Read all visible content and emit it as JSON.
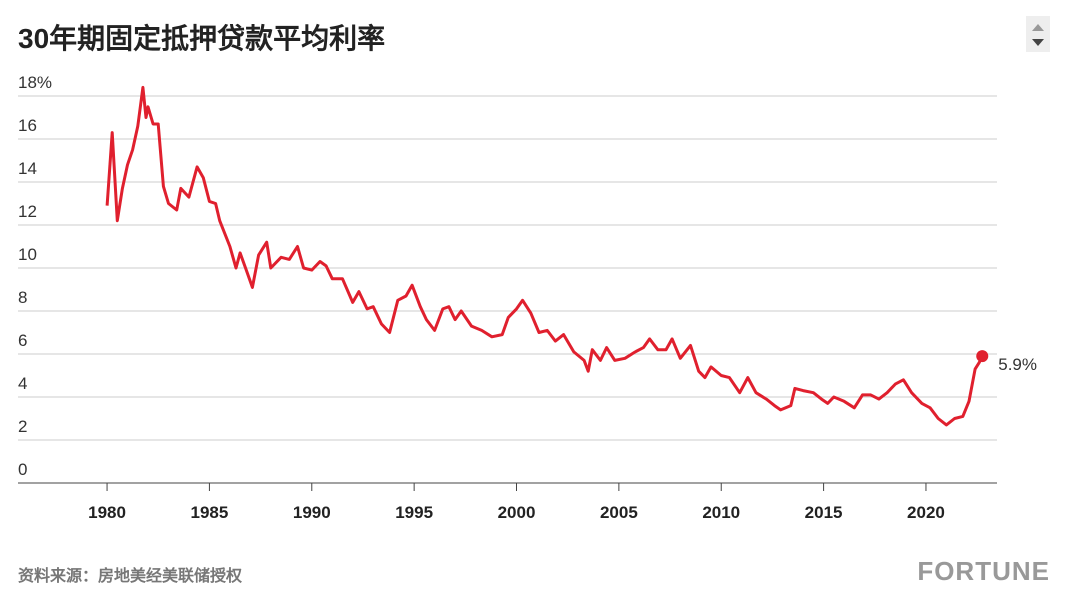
{
  "chart_data": {
    "type": "line",
    "title": "30年期固定抵押贷款平均利率",
    "source": "资料来源：房地美经美联储授权",
    "brand": "FORTUNE",
    "x": [
      1980.0,
      1980.25,
      1980.5,
      1980.75,
      1981.0,
      1981.25,
      1981.5,
      1981.75,
      1981.9,
      1982.0,
      1982.25,
      1982.5,
      1982.75,
      1983.0,
      1983.4,
      1983.6,
      1984.0,
      1984.4,
      1984.7,
      1985.0,
      1985.3,
      1985.5,
      1986.0,
      1986.3,
      1986.5,
      1986.8,
      1987.1,
      1987.4,
      1987.8,
      1988.0,
      1988.5,
      1988.9,
      1989.3,
      1989.6,
      1990.0,
      1990.4,
      1990.7,
      1991.0,
      1991.5,
      1992.0,
      1992.3,
      1992.7,
      1993.0,
      1993.4,
      1993.8,
      1994.2,
      1994.6,
      1994.9,
      1995.3,
      1995.6,
      1996.0,
      1996.4,
      1996.7,
      1997.0,
      1997.3,
      1997.8,
      1998.3,
      1998.8,
      1999.3,
      1999.6,
      2000.0,
      2000.3,
      2000.7,
      2001.1,
      2001.5,
      2001.9,
      2002.3,
      2002.8,
      2003.3,
      2003.5,
      2003.7,
      2004.1,
      2004.4,
      2004.8,
      2005.3,
      2005.8,
      2006.2,
      2006.5,
      2006.9,
      2007.3,
      2007.6,
      2008.0,
      2008.5,
      2008.9,
      2009.2,
      2009.5,
      2010.0,
      2010.4,
      2010.9,
      2011.3,
      2011.7,
      2012.2,
      2012.6,
      2012.9,
      2013.4,
      2013.6,
      2014.0,
      2014.5,
      2014.9,
      2015.2,
      2015.5,
      2016.0,
      2016.5,
      2016.9,
      2017.3,
      2017.7,
      2018.1,
      2018.5,
      2018.9,
      2019.3,
      2019.8,
      2020.2,
      2020.6,
      2021.0,
      2021.4,
      2021.8,
      2022.1,
      2022.4,
      2022.6,
      2022.75
    ],
    "series": [
      {
        "color": "#e0202e",
        "values": [
          12.9,
          16.3,
          12.2,
          13.7,
          14.8,
          15.5,
          16.6,
          18.4,
          17.0,
          17.5,
          16.7,
          16.7,
          13.8,
          13.0,
          12.7,
          13.7,
          13.3,
          14.7,
          14.2,
          13.1,
          13.0,
          12.2,
          11.0,
          10.0,
          10.7,
          9.9,
          9.1,
          10.6,
          11.2,
          10.0,
          10.5,
          10.4,
          11.0,
          10.0,
          9.9,
          10.3,
          10.1,
          9.5,
          9.5,
          8.4,
          8.9,
          8.1,
          8.2,
          7.4,
          7.0,
          8.5,
          8.7,
          9.2,
          8.2,
          7.6,
          7.1,
          8.1,
          8.2,
          7.6,
          8.0,
          7.3,
          7.1,
          6.8,
          6.9,
          7.7,
          8.1,
          8.5,
          7.9,
          7.0,
          7.1,
          6.6,
          6.9,
          6.1,
          5.7,
          5.2,
          6.2,
          5.7,
          6.3,
          5.7,
          5.8,
          6.1,
          6.3,
          6.7,
          6.2,
          6.2,
          6.7,
          5.8,
          6.4,
          5.2,
          4.9,
          5.4,
          5.0,
          4.9,
          4.2,
          4.9,
          4.2,
          3.9,
          3.6,
          3.4,
          3.6,
          4.4,
          4.3,
          4.2,
          3.9,
          3.7,
          4.0,
          3.8,
          3.5,
          4.1,
          4.1,
          3.9,
          4.2,
          4.6,
          4.8,
          4.2,
          3.7,
          3.5,
          3.0,
          2.7,
          3.0,
          3.1,
          3.8,
          5.3,
          5.6,
          5.9
        ]
      }
    ],
    "end_label": "5.9%",
    "xlim": [
      1975.65,
      2023.47
    ],
    "xticks": [
      1980,
      1985,
      1990,
      1995,
      2000,
      2005,
      2010,
      2015,
      2020
    ],
    "ylim": [
      0,
      18
    ],
    "yticks": [
      0,
      2,
      4,
      6,
      8,
      10,
      12,
      14,
      16,
      {
        "value": 18,
        "label": "18%"
      }
    ],
    "grid": true
  }
}
